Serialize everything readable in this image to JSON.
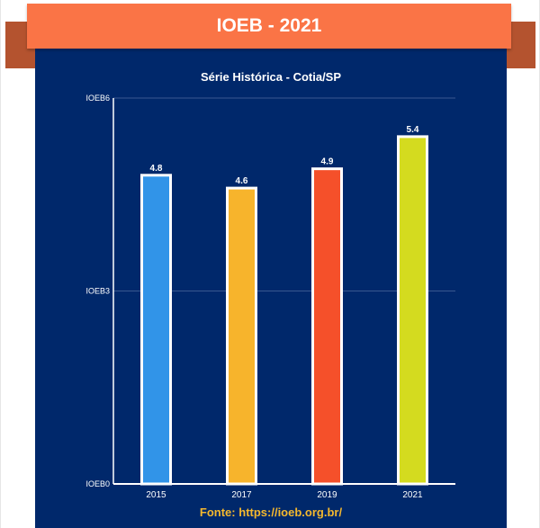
{
  "banner": {
    "title": "IOEB - 2021"
  },
  "source": {
    "prefix": "Fonte:",
    "link": "https://ioeb.org.br/"
  },
  "colors": {
    "banner": "#fa7446",
    "panel": "#00286b",
    "source_text": "#f5b82e",
    "bars": [
      "#3194e8",
      "#f7b42c",
      "#f5502a",
      "#d4db1f"
    ]
  },
  "chart_data": {
    "type": "bar",
    "title": "Série Histórica - Cotia/SP",
    "categories": [
      "2015",
      "2017",
      "2019",
      "2021"
    ],
    "values": [
      4.8,
      4.6,
      4.9,
      5.4
    ],
    "data_labels": [
      "4.8",
      "4.6",
      "4.9",
      "5.4"
    ],
    "y_ticks": [
      {
        "value": 0,
        "label": "IOEB0"
      },
      {
        "value": 3,
        "label": "IOEB3"
      },
      {
        "value": 6,
        "label": "IOEB6"
      }
    ],
    "ylim": [
      0,
      6
    ],
    "xlabel": "",
    "ylabel": "",
    "grid": true,
    "legend": "none"
  }
}
